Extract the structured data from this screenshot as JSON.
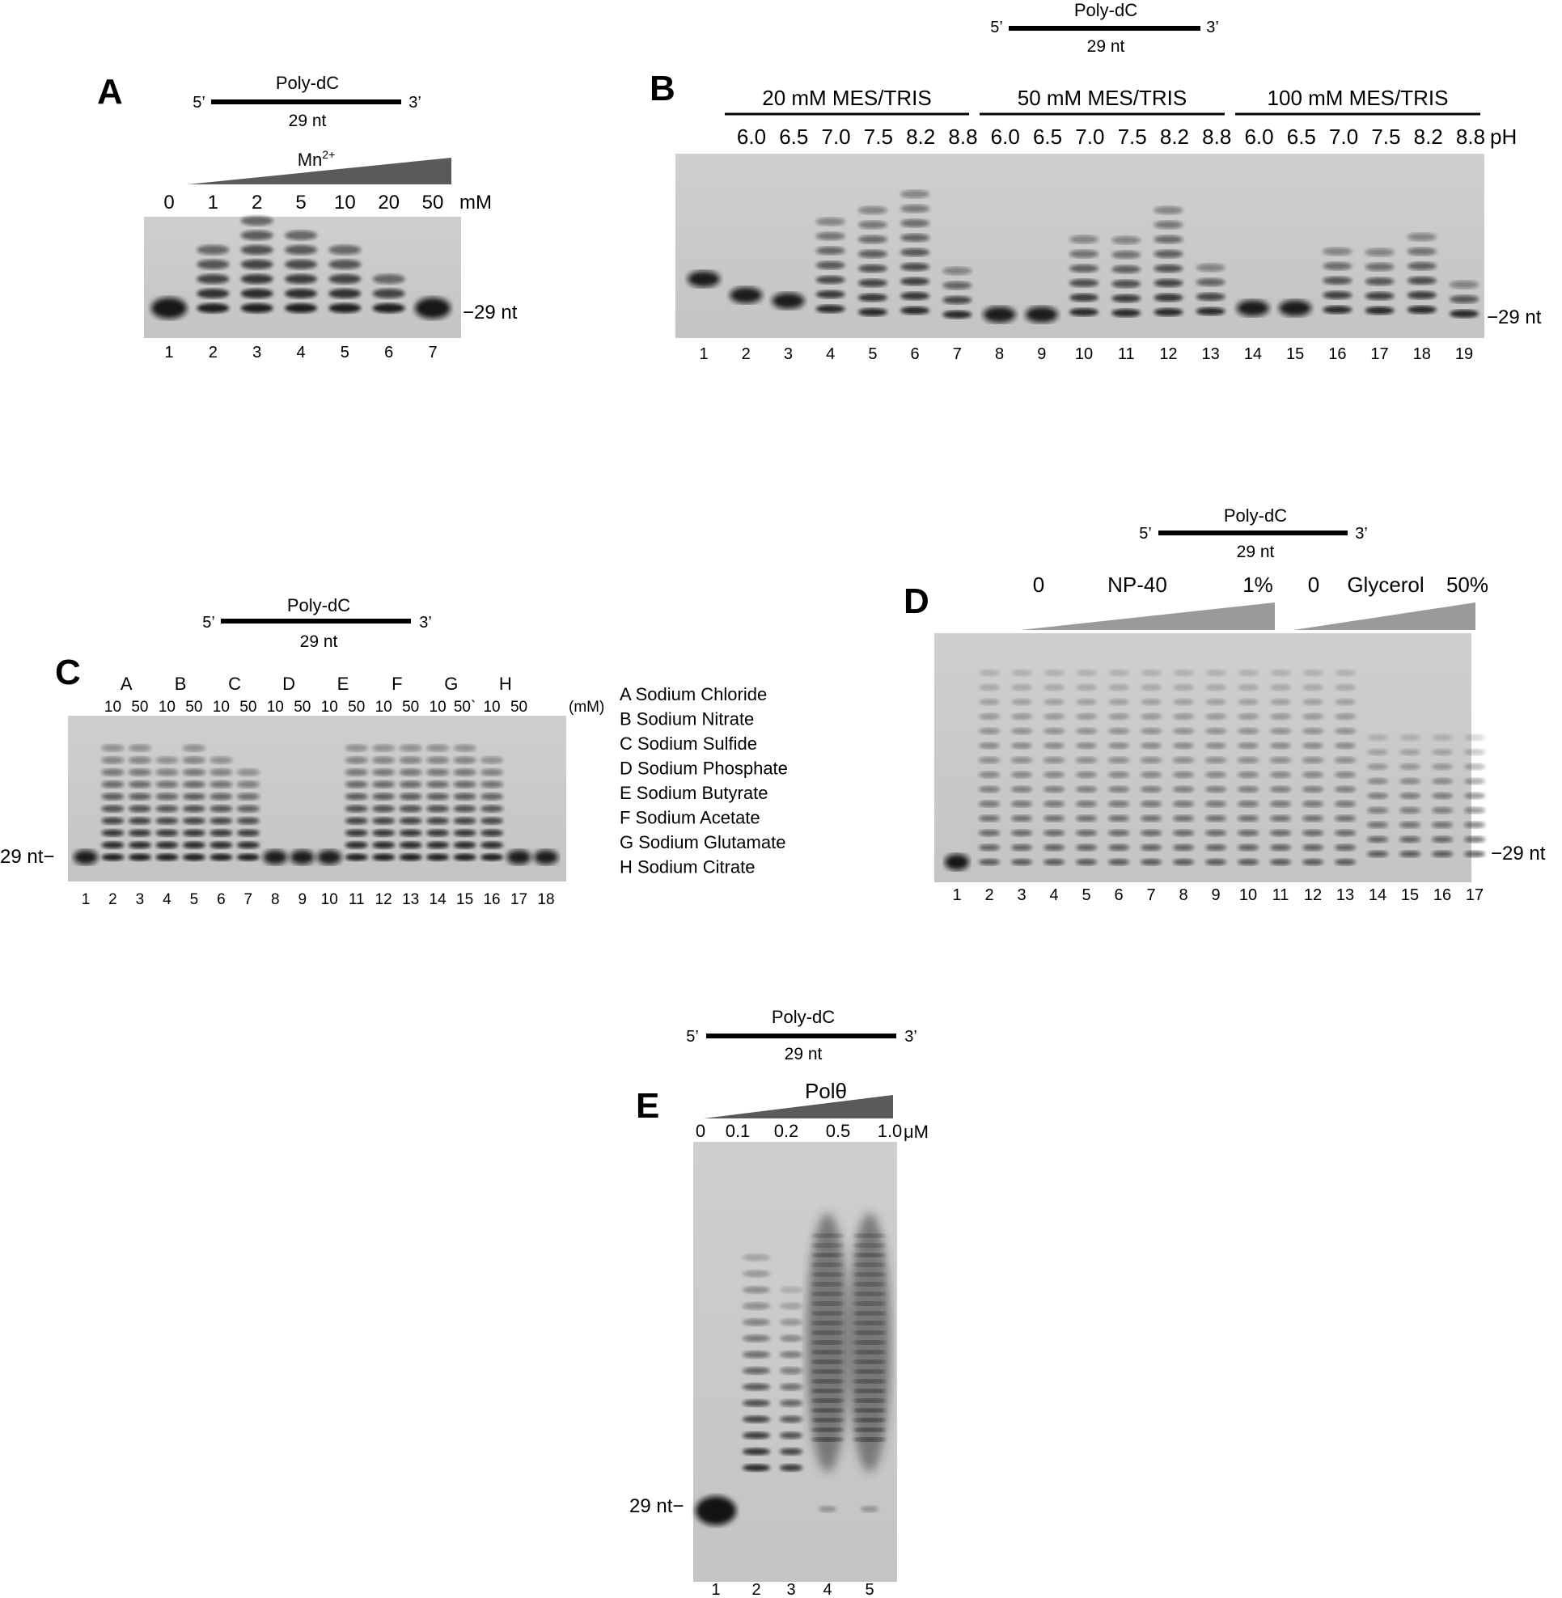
{
  "figure": {
    "background": "#ffffff",
    "ink": "#000000",
    "gel_background": "#c9c9c9",
    "band_color": "#111111",
    "wedge_color": "#555555"
  },
  "panel_A": {
    "letter": "A",
    "substrate": {
      "name": "Poly-dC",
      "five": "5’",
      "three": "3’",
      "length": "29 nt"
    },
    "wedge_label": "Mn",
    "wedge_superscript": "2+",
    "conc": [
      "0",
      "1",
      "2",
      "5",
      "10",
      "20",
      "50"
    ],
    "unit": "mM",
    "marker": "−29 nt",
    "lanes": [
      "1",
      "2",
      "3",
      "4",
      "5",
      "6",
      "7"
    ]
  },
  "panel_B": {
    "letter": "B",
    "substrate": {
      "name": "Poly-dC",
      "five": "5’",
      "three": "3’",
      "length": "29 nt"
    },
    "groups": [
      "20 mM MES/TRIS",
      "50 mM MES/TRIS",
      "100 mM MES/TRIS"
    ],
    "ph_values": [
      "6.0",
      "6.5",
      "7.0",
      "7.5",
      "8.2",
      "8.8"
    ],
    "ph_unit": "pH",
    "marker": "−29 nt",
    "lanes": [
      "1",
      "2",
      "3",
      "4",
      "5",
      "6",
      "7",
      "8",
      "9",
      "10",
      "11",
      "12",
      "13",
      "14",
      "15",
      "16",
      "17",
      "18",
      "19"
    ]
  },
  "panel_C": {
    "letter": "C",
    "substrate": {
      "name": "Poly-dC",
      "five": "5’",
      "three": "3’",
      "length": "29 nt"
    },
    "salt_letters": [
      "A",
      "B",
      "C",
      "D",
      "E",
      "F",
      "G",
      "H"
    ],
    "conc_row": [
      "10",
      "50",
      "10",
      "50",
      "10",
      "50",
      "10",
      "50",
      "10",
      "50",
      "10",
      "50",
      "10",
      "50`",
      "10",
      "50"
    ],
    "unit": "(mM)",
    "marker": "29 nt−",
    "lanes": [
      "1",
      "2",
      "3",
      "4",
      "5",
      "6",
      "7",
      "8",
      "9",
      "10",
      "11",
      "12",
      "13",
      "14",
      "15",
      "16",
      "17",
      "18"
    ],
    "legend": [
      "A Sodium Chloride",
      "B Sodium Nitrate",
      "C Sodium Sulfide",
      "D Sodium Phosphate",
      "E Sodium Butyrate",
      "F Sodium Acetate",
      "G Sodium Glutamate",
      "H Sodium Citrate"
    ]
  },
  "panel_D": {
    "letter": "D",
    "substrate": {
      "name": "Poly-dC",
      "five": "5’",
      "three": "3’",
      "length": "29 nt"
    },
    "np40_start": "0",
    "np40_label": "NP-40",
    "np40_end": "1%",
    "glycerol_start": "0",
    "glycerol_label": "Glycerol",
    "glycerol_end": "50%",
    "marker": "−29 nt",
    "lanes": [
      "1",
      "2",
      "3",
      "4",
      "5",
      "6",
      "7",
      "8",
      "9",
      "10",
      "11",
      "12",
      "13",
      "14",
      "15",
      "16",
      "17"
    ]
  },
  "panel_E": {
    "letter": "E",
    "substrate": {
      "name": "Poly-dC",
      "five": "5’",
      "three": "3’",
      "length": "29 nt"
    },
    "wedge_label": "Polθ",
    "conc": [
      "0",
      "0.1",
      "0.2",
      "0.5",
      "1.0"
    ],
    "unit": "μM",
    "marker": "29 nt−",
    "lanes": [
      "1",
      "2",
      "3",
      "4",
      "5"
    ]
  }
}
